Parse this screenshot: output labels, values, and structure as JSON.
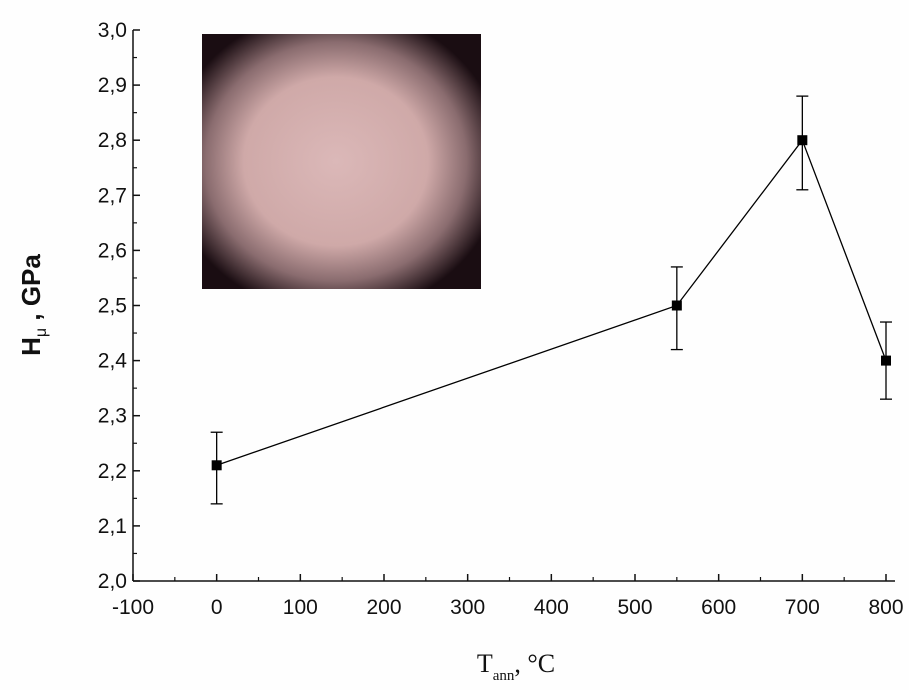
{
  "chart_data": {
    "type": "scatter",
    "title": "",
    "xlabel": {
      "main": "T",
      "sub": "ann",
      "unit": ", °C"
    },
    "ylabel": {
      "main": "H",
      "sub": "μ",
      "unit": " , GPa"
    },
    "xlim": [
      -100,
      800
    ],
    "ylim": [
      2.0,
      3.0
    ],
    "xticks": [
      "-100",
      "0",
      "100",
      "200",
      "300",
      "400",
      "500",
      "600",
      "700",
      "800"
    ],
    "yticks": [
      "2,0",
      "2,1",
      "2,2",
      "2,3",
      "2,4",
      "2,5",
      "2,6",
      "2,7",
      "2,8",
      "2,9",
      "3,0"
    ],
    "grid": false,
    "legend": "none",
    "series": [
      {
        "x": [
          0,
          550,
          700,
          800
        ],
        "y": [
          2.21,
          2.5,
          2.8,
          2.4
        ],
        "err_low": [
          2.14,
          2.42,
          2.71,
          2.33
        ],
        "err_high": [
          2.27,
          2.57,
          2.88,
          2.47
        ],
        "marker": "square",
        "color": "#000000"
      }
    ],
    "inset_image": {
      "content": "micrograph-photo",
      "colors": {
        "center": "#d9b5b5",
        "edge": "#1a0d12"
      }
    }
  }
}
